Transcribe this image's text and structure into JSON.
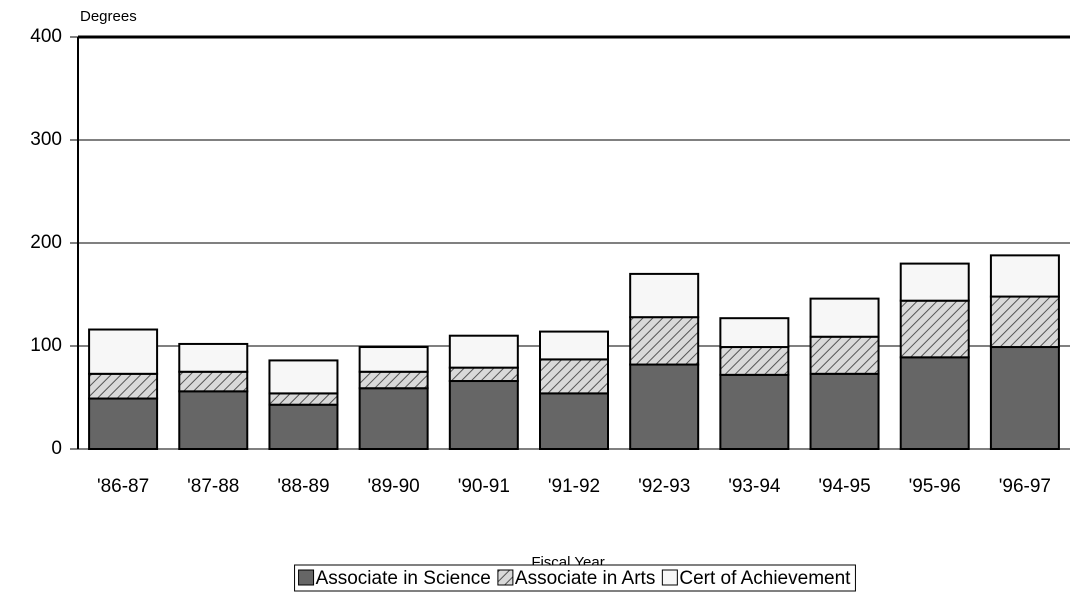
{
  "chart_data": {
    "type": "stacked-bar",
    "y_label": "Degrees",
    "x_label": "Fiscal Year",
    "categories": [
      "'86-87",
      "'87-88",
      "'88-89",
      "'89-90",
      "'90-91",
      "'91-92",
      "'92-93",
      "'93-94",
      "'94-95",
      "'95-96",
      "'96-97"
    ],
    "series": [
      {
        "name": "Associate in Science",
        "color": "#666666",
        "hatch": false,
        "values": [
          49,
          56,
          43,
          59,
          66,
          54,
          82,
          72,
          73,
          89,
          99
        ]
      },
      {
        "name": "Associate in Arts",
        "color": "#8c8c8c",
        "hatch": true,
        "values": [
          24,
          19,
          11,
          16,
          13,
          33,
          46,
          27,
          36,
          55,
          49
        ]
      },
      {
        "name": "Cert of Achievement",
        "color": "#f7f7f7",
        "hatch": false,
        "values": [
          43,
          27,
          32,
          24,
          31,
          27,
          42,
          28,
          37,
          36,
          40
        ]
      }
    ],
    "ylim": [
      0,
      400
    ],
    "yticks": [
      0,
      100,
      200,
      300,
      400
    ],
    "grid": true,
    "legend": "bottom"
  }
}
